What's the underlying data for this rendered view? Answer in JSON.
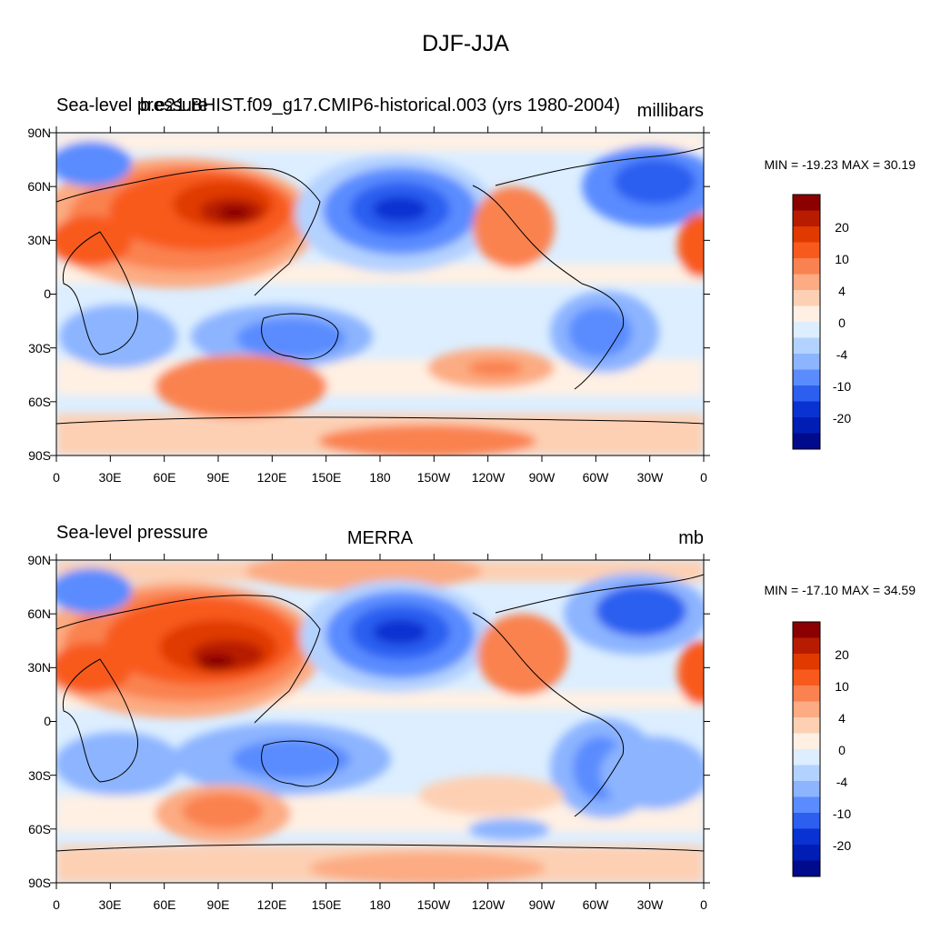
{
  "figure": {
    "title": "DJF-JJA"
  },
  "axes": {
    "lat_ticks": [
      "90N",
      "60N",
      "30N",
      "0",
      "30S",
      "60S",
      "90S"
    ],
    "lon_ticks": [
      "0",
      "30E",
      "60E",
      "90E",
      "120E",
      "150E",
      "180",
      "150W",
      "120W",
      "90W",
      "60W",
      "30W",
      "0"
    ]
  },
  "colorbar": {
    "labels": [
      "20",
      "10",
      "4",
      "0",
      "-4",
      "-10",
      "-20"
    ],
    "colors": [
      "#8b0000",
      "#b71c00",
      "#e03a00",
      "#f85a1e",
      "#fa8250",
      "#fcab82",
      "#fdd0b4",
      "#fff0e3",
      "#dceeff",
      "#b4d2ff",
      "#8cb4ff",
      "#5a8cff",
      "#2c5ff0",
      "#0a32d2",
      "#001eb4",
      "#000a8c"
    ]
  },
  "panels": [
    {
      "left": "Sea-level pressure",
      "center": "b.e21.BHIST.f09_g17.CMIP6-historical.003 (yrs 1980-2004)",
      "right": "millibars",
      "stats": "MIN = -19.23 MAX =  30.19"
    },
    {
      "left": "Sea-level pressure",
      "center": "MERRA",
      "right": "mb",
      "stats": "MIN = -17.10 MAX =  34.59"
    }
  ]
}
